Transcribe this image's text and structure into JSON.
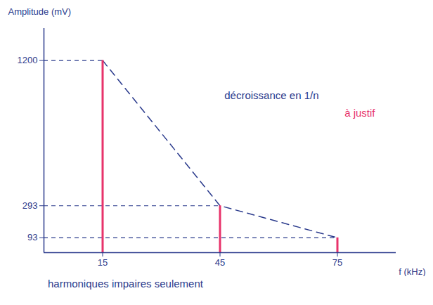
{
  "chart_data": {
    "type": "bar",
    "x_label": "f (kHz)",
    "y_label": "Amplitude (mV)",
    "x": [
      15,
      45,
      75
    ],
    "values": [
      1200,
      293,
      93
    ],
    "color": "#e8336b",
    "xlim": [
      0,
      90
    ],
    "xticks": [
      15,
      45,
      75
    ],
    "ylim": [
      0,
      1400
    ],
    "yticks": [
      93,
      293,
      1200
    ],
    "annotations": [
      "décroissance en 1/n",
      "à justif"
    ],
    "caption": "harmoniques impaires seulement"
  }
}
